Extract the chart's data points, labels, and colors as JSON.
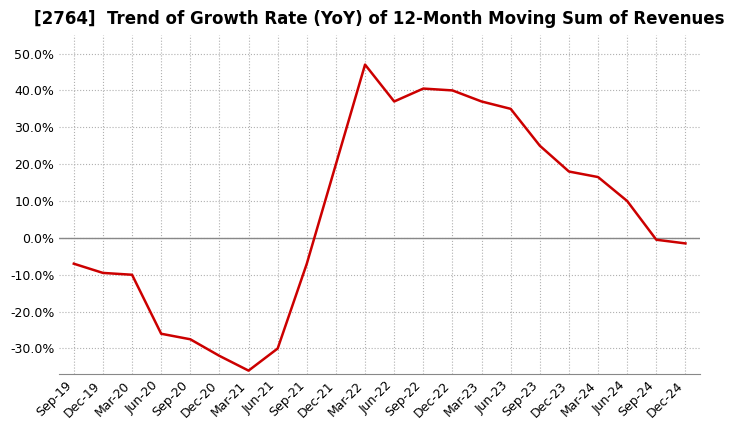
{
  "title": "[2764]  Trend of Growth Rate (YoY) of 12-Month Moving Sum of Revenues",
  "x_labels": [
    "Sep-19",
    "Dec-19",
    "Mar-20",
    "Jun-20",
    "Sep-20",
    "Dec-20",
    "Mar-21",
    "Jun-21",
    "Sep-21",
    "Dec-21",
    "Mar-22",
    "Jun-22",
    "Sep-22",
    "Dec-22",
    "Mar-23",
    "Jun-23",
    "Sep-23",
    "Dec-23",
    "Mar-24",
    "Jun-24",
    "Sep-24",
    "Dec-24"
  ],
  "y_values": [
    -7.0,
    -9.5,
    -10.0,
    -26.0,
    -27.5,
    -32.0,
    -36.0,
    -30.0,
    -7.0,
    20.0,
    47.0,
    37.0,
    40.5,
    40.0,
    37.0,
    35.0,
    25.0,
    18.0,
    16.5,
    10.0,
    -0.5,
    -1.5
  ],
  "ylim": [
    -37,
    55
  ],
  "yticks": [
    -30,
    -20,
    -10,
    0,
    10,
    20,
    30,
    40,
    50
  ],
  "line_color": "#cc0000",
  "grid_color": "#b0b0b0",
  "background_color": "#ffffff",
  "title_fontsize": 12,
  "tick_fontsize": 9
}
